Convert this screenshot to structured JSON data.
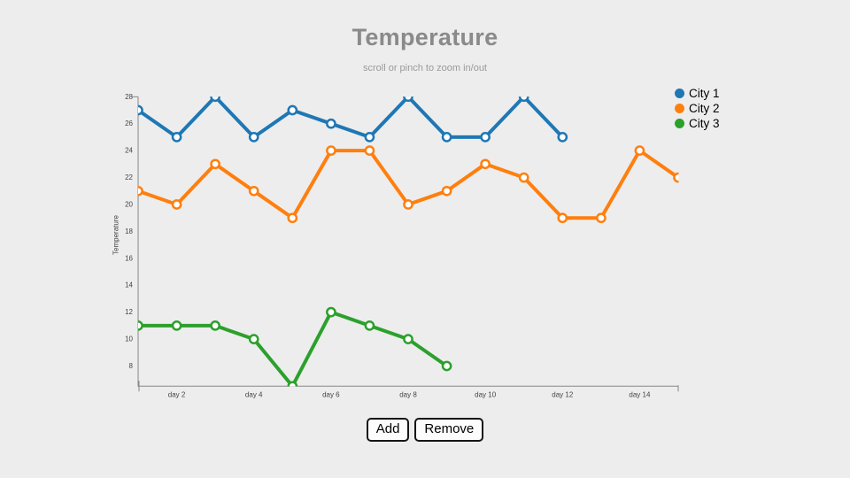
{
  "chart": {
    "title": "Temperature",
    "subtitle": "scroll or pinch to zoom in/out",
    "y_axis_title": "Temperature"
  },
  "chart_data": {
    "type": "line",
    "title": "Temperature",
    "subtitle": "scroll or pinch to zoom in/out",
    "xlabel": "",
    "ylabel": "Temperature",
    "xlim": [
      1,
      15
    ],
    "ylim": [
      6.5,
      28
    ],
    "grid": false,
    "legend_position": "top-right",
    "x_unit": "day",
    "y_ticks": [
      8,
      10,
      12,
      14,
      16,
      18,
      20,
      22,
      24,
      26,
      28
    ],
    "x_ticks": [
      {
        "day": 2,
        "label": "day 2"
      },
      {
        "day": 4,
        "label": "day 4"
      },
      {
        "day": 6,
        "label": "day 6"
      },
      {
        "day": 8,
        "label": "day 8"
      },
      {
        "day": 10,
        "label": "day 10"
      },
      {
        "day": 12,
        "label": "day 12"
      },
      {
        "day": 14,
        "label": "day 14"
      }
    ],
    "series": [
      {
        "name": "City 1",
        "color": "#1f77b4",
        "start_day": 1,
        "values": [
          27,
          25,
          28,
          25,
          27,
          26,
          25,
          28,
          25,
          25,
          28,
          25
        ]
      },
      {
        "name": "City 2",
        "color": "#ff7f0e",
        "start_day": 1,
        "values": [
          21,
          20,
          23,
          21,
          19,
          24,
          24,
          20,
          21,
          23,
          22,
          19,
          19,
          24,
          22
        ]
      },
      {
        "name": "City 3",
        "color": "#2ca02c",
        "start_day": 1,
        "values": [
          11,
          11,
          11,
          10,
          6.5,
          12,
          11,
          10,
          8
        ]
      }
    ],
    "marker": {
      "shape": "open-circle",
      "fill": "#ffffff"
    }
  },
  "buttons": {
    "add": "Add",
    "remove": "Remove"
  },
  "colors": {
    "background": "#ededed",
    "title_text": "#8a8a8a",
    "subtitle_text": "#9a9a9a",
    "axis": "#888888",
    "tick_text": "#444444",
    "legend_text": "#000000",
    "series_blue": "#1f77b4",
    "series_orange": "#ff7f0e",
    "series_green": "#2ca02c"
  }
}
